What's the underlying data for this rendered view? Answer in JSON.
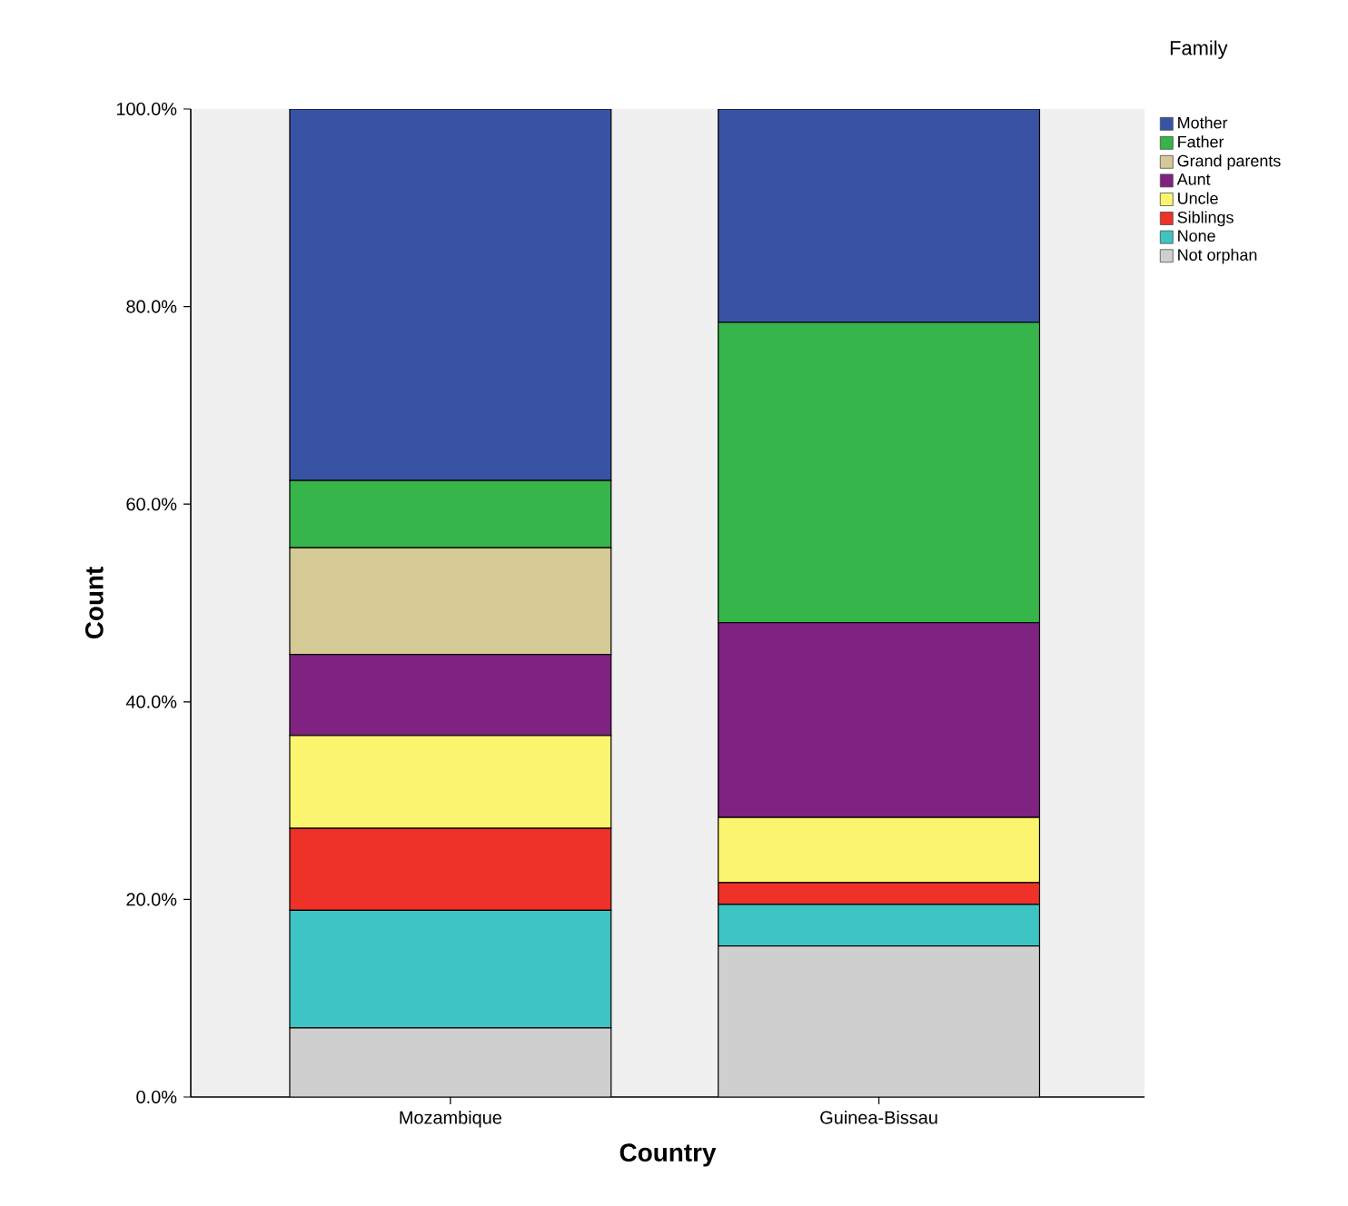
{
  "chart_data": {
    "type": "bar",
    "stacked": true,
    "xlabel": "Country",
    "ylabel": "Count",
    "legend_title": "Family",
    "legend": "top right",
    "grid": false,
    "categories": [
      "Mozambique",
      "Guinea-Bissau"
    ],
    "ylim": [
      0,
      100
    ],
    "yticks": [
      {
        "value": 0,
        "label": "0.0%"
      },
      {
        "value": 20,
        "label": "20.0%"
      },
      {
        "value": 40,
        "label": "40.0%"
      },
      {
        "value": 60,
        "label": "60.0%"
      },
      {
        "value": 80,
        "label": "80.0%"
      },
      {
        "value": 100,
        "label": "100.0%"
      }
    ],
    "series": [
      {
        "name": "Not orphan",
        "color": "#cfcfcf",
        "values": [
          7.0,
          15.3
        ]
      },
      {
        "name": "None",
        "color": "#3ec4c2",
        "values": [
          11.9,
          4.2
        ]
      },
      {
        "name": "Siblings",
        "color": "#ee3129",
        "values": [
          8.3,
          2.2
        ]
      },
      {
        "name": "Uncle",
        "color": "#fbf46e",
        "values": [
          9.4,
          6.6
        ]
      },
      {
        "name": "Aunt",
        "color": "#7f2281",
        "values": [
          8.2,
          19.7
        ]
      },
      {
        "name": "Grand parents",
        "color": "#d5c996",
        "values": [
          10.8,
          0
        ]
      },
      {
        "name": "Father",
        "color": "#36b54a",
        "values": [
          6.8,
          30.4
        ]
      },
      {
        "name": "Mother",
        "color": "#3953a4",
        "values": [
          37.6,
          21.6
        ]
      }
    ]
  }
}
